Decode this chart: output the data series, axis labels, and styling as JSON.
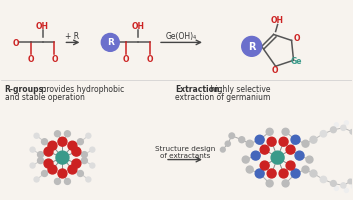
{
  "bg_color": "#f7f3ee",
  "red_color": "#cc2222",
  "circle_color": "#6b6fcc",
  "teal_color": "#3a9a8a",
  "arrow_color": "#444444",
  "text_color": "#333333",
  "bond_color": "#555555",
  "bold_label1": "R-groups:",
  "text1a": " provides hydrophobic",
  "text1b": "and stable operation",
  "bold_label2": "Extraction:",
  "text2a": " highly selective",
  "text2b": "extraction of germanium",
  "arrow_label1": "+ R",
  "arrow_label2": "Ge(OH)₄",
  "bottom_label": "Structure design\nof extractants"
}
